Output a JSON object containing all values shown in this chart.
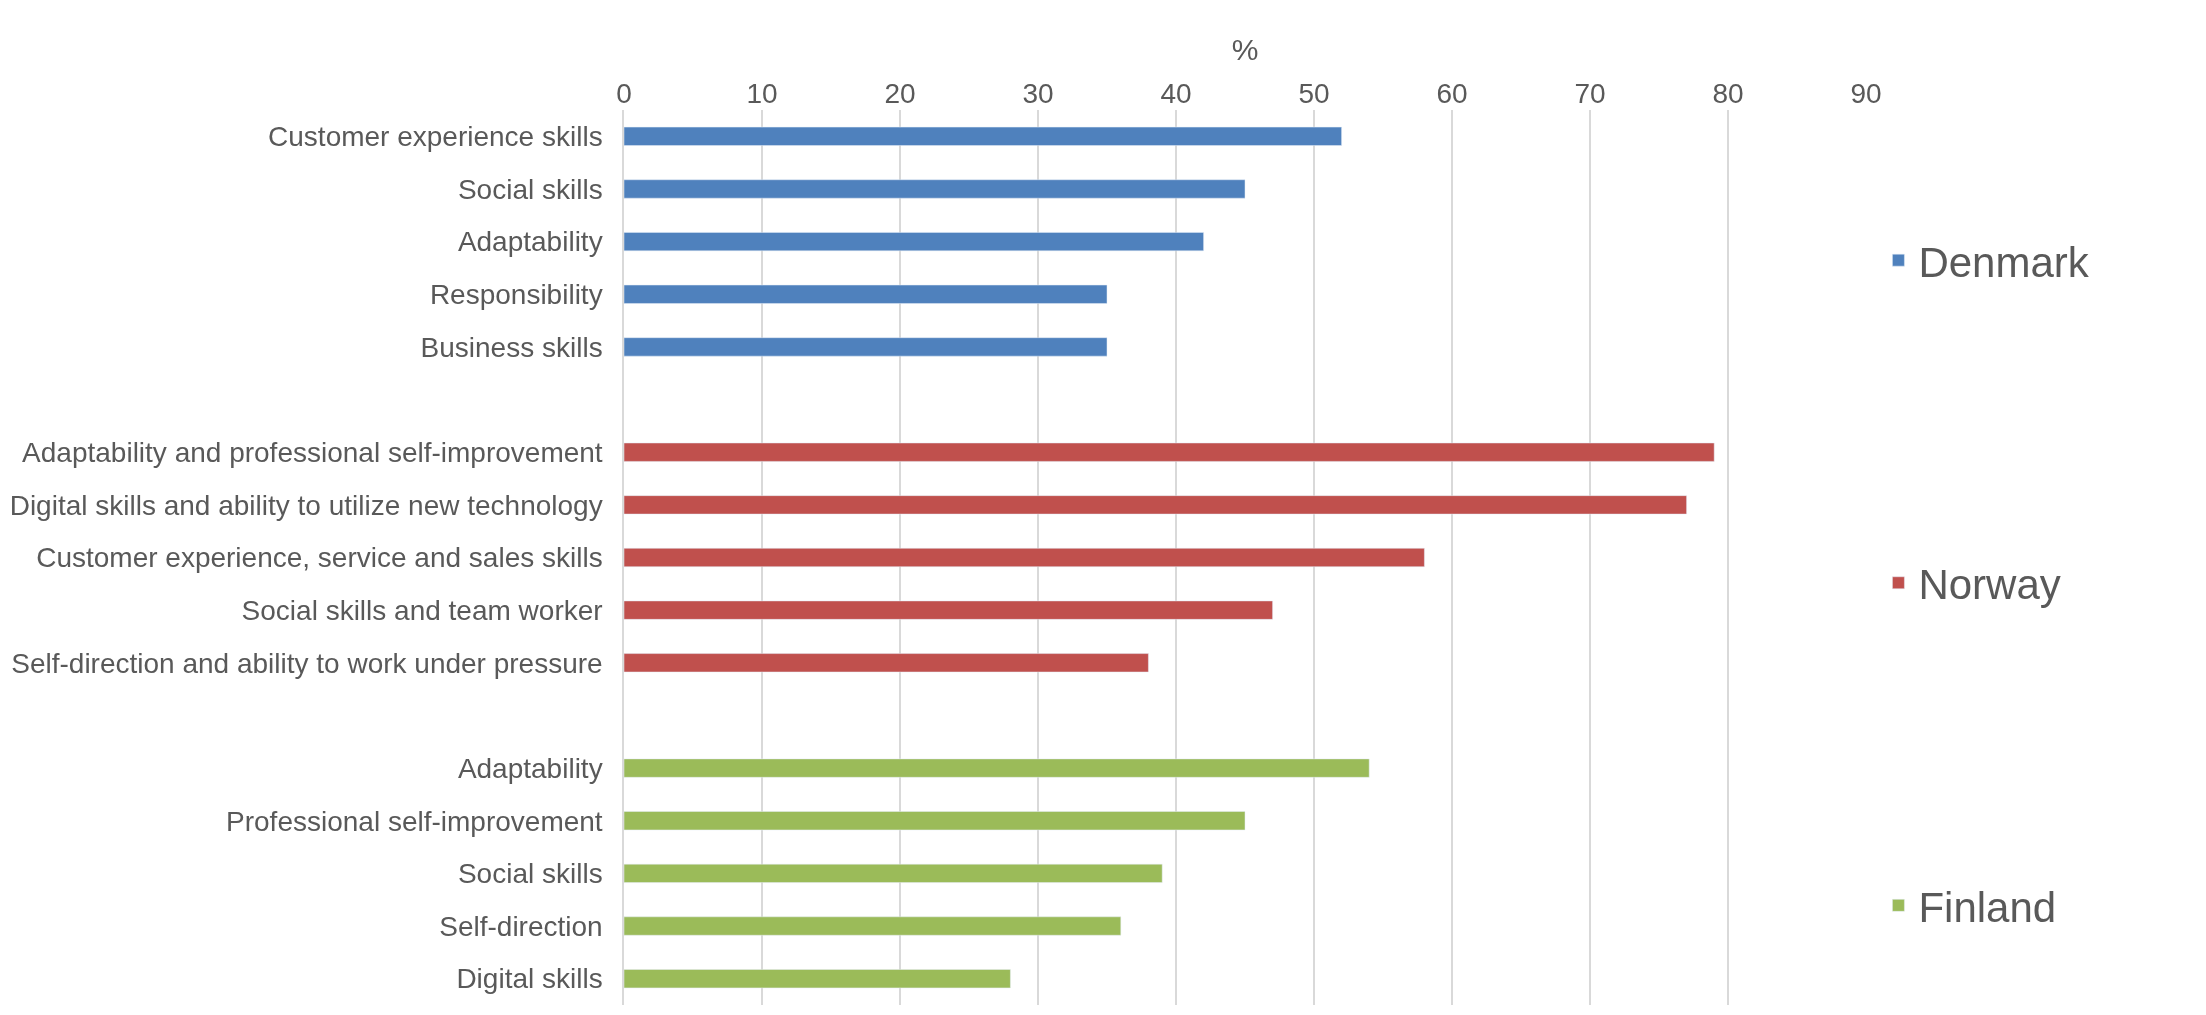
{
  "chart_data": {
    "type": "bar",
    "orientation": "horizontal",
    "xlabel": "%",
    "xlim": [
      0,
      90
    ],
    "xticks": [
      0,
      10,
      20,
      30,
      40,
      50,
      60,
      70,
      80,
      90
    ],
    "grid": "x",
    "legend": "right",
    "categories": [
      "Customer experience skills",
      "Social skills",
      "Adaptability",
      "Responsibility",
      "Business skills",
      null,
      "Adaptability and professional self-improvement",
      "Digital skills and ability to utilize new technology",
      "Customer experience, service and sales skills",
      "Social skills and team worker",
      "Self-direction and ability to work under pressure",
      null,
      "Adaptability",
      "Professional self-improvement",
      "Social skills",
      "Self-direction",
      "Digital skills"
    ],
    "series": [
      {
        "name": "Denmark",
        "color": "#4f81bd",
        "values": [
          52,
          45,
          42,
          35,
          35,
          null,
          null,
          null,
          null,
          null,
          null,
          null,
          null,
          null,
          null,
          null,
          null
        ]
      },
      {
        "name": "Norway",
        "color": "#c0504d",
        "values": [
          null,
          null,
          null,
          null,
          null,
          null,
          79,
          77,
          58,
          47,
          38,
          null,
          null,
          null,
          null,
          null,
          null
        ]
      },
      {
        "name": "Finland",
        "color": "#9bbb59",
        "values": [
          null,
          null,
          null,
          null,
          null,
          null,
          null,
          null,
          null,
          null,
          null,
          null,
          54,
          45,
          39,
          36,
          28
        ]
      }
    ]
  }
}
